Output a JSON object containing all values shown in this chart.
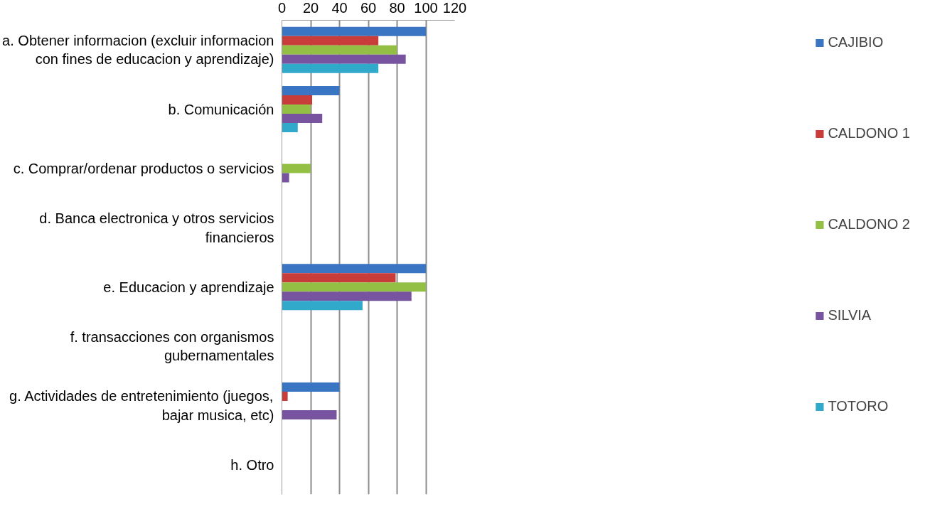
{
  "chart_data": {
    "type": "bar",
    "orientation": "horizontal",
    "categories": [
      "a. Obtener informacion (excluir informacion con fines de educacion y aprendizaje)",
      "b. Comunicación",
      "c. Comprar/ordenar productos o servicios",
      "d. Banca electronica y otros servicios financieros",
      "e. Educacion y aprendizaje",
      "f. transacciones con organismos gubernamentales",
      "g. Actividades de entretenimiento (juegos, bajar musica, etc)",
      "h. Otro"
    ],
    "series": [
      {
        "name": "CAJIBIO",
        "color": "#3a75c4",
        "values": [
          100,
          40,
          null,
          null,
          100,
          null,
          40,
          null
        ]
      },
      {
        "name": "CALDONO 1",
        "color": "#c83c3a",
        "values": [
          67,
          21,
          null,
          null,
          79,
          null,
          4,
          null
        ]
      },
      {
        "name": "CALDONO 2",
        "color": "#93bf45",
        "values": [
          80,
          20,
          20,
          null,
          100,
          null,
          null,
          null
        ]
      },
      {
        "name": "SILVIA",
        "color": "#7853a0",
        "values": [
          86,
          28,
          5,
          null,
          90,
          null,
          38,
          null
        ]
      },
      {
        "name": "TOTORO",
        "color": "#31a9cb",
        "values": [
          67,
          11,
          null,
          null,
          56,
          null,
          null,
          null
        ]
      }
    ],
    "xlim": [
      0,
      120
    ],
    "xticks": [
      0,
      20,
      40,
      60,
      80,
      100,
      120
    ],
    "grid": "x",
    "legend": "right"
  }
}
